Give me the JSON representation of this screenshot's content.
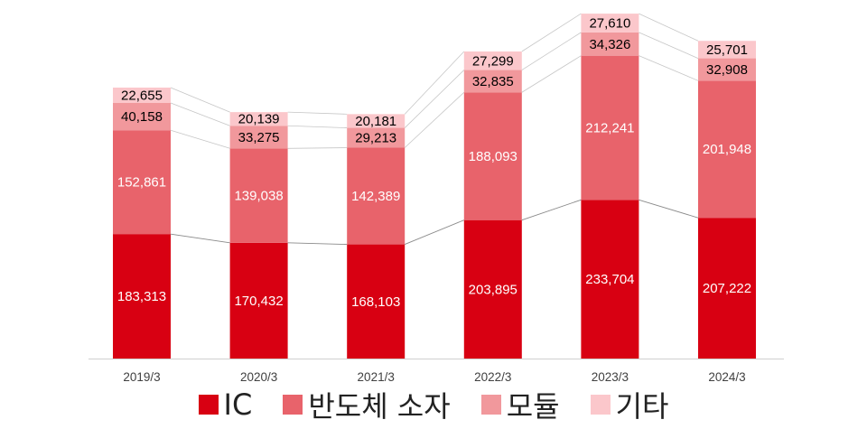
{
  "chart_data": {
    "type": "bar",
    "stacked": true,
    "categories": [
      "2019/3",
      "2020/3",
      "2021/3",
      "2022/3",
      "2023/3",
      "2024/3"
    ],
    "series": [
      {
        "name": "IC",
        "color": "#d80012",
        "label_color": "#ffffff",
        "values": [
          183313,
          170432,
          168103,
          203895,
          233704,
          207222
        ]
      },
      {
        "name": "반도체 소자",
        "color": "#e8636b",
        "label_color": "#ffffff",
        "values": [
          152861,
          139038,
          142389,
          188093,
          212241,
          201948
        ]
      },
      {
        "name": "모듈",
        "color": "#f1989c",
        "label_color": "#000000",
        "values": [
          40158,
          33275,
          29213,
          32835,
          34326,
          32908
        ]
      },
      {
        "name": "기타",
        "color": "#fbc7cb",
        "label_color": "#000000",
        "values": [
          22655,
          20139,
          20181,
          27299,
          27610,
          25701
        ]
      }
    ],
    "value_labels": [
      [
        "183,313",
        "170,432",
        "168,103",
        "203,895",
        "233,704",
        "207,222"
      ],
      [
        "152,861",
        "139,038",
        "142,389",
        "188,093",
        "212,241",
        "201,948"
      ],
      [
        "40,158",
        "33,275",
        "29,213",
        "32,835",
        "34,326",
        "32,908"
      ],
      [
        "22,655",
        "20,139",
        "20,181",
        "27,299",
        "27,610",
        "25,701"
      ]
    ],
    "series_lines": true,
    "ylim": [
      0,
      508000
    ],
    "grid": false,
    "legend": "bottom"
  }
}
